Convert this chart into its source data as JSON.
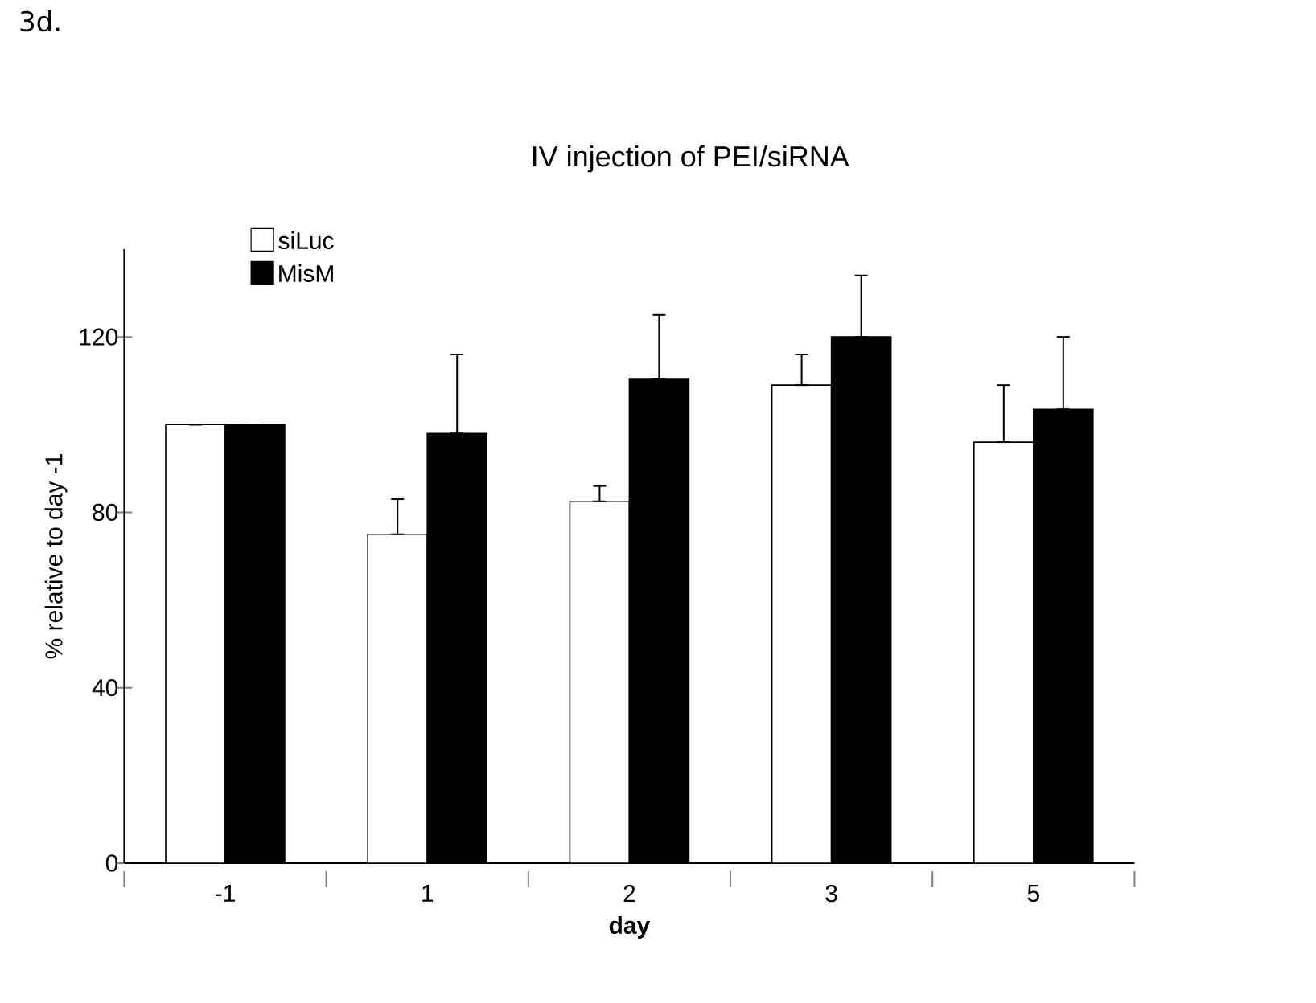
{
  "chart_data": {
    "type": "bar",
    "title": "IV injection of PEI/siRNA",
    "xlabel": "day",
    "ylabel": "% relative to day -1",
    "annotations": [
      "3d."
    ],
    "categories": [
      "-1",
      "1",
      "2",
      "3",
      "5"
    ],
    "series": [
      {
        "name": "siLuc",
        "color": "#ffffff",
        "values": [
          100,
          75,
          82.5,
          109,
          96
        ],
        "errors": [
          null,
          [
            75,
            83
          ],
          [
            82.5,
            86
          ],
          [
            109,
            116
          ],
          [
            96,
            109
          ]
        ]
      },
      {
        "name": "MisM",
        "color": "#000000",
        "values": [
          100,
          98,
          110.5,
          120,
          103.5
        ],
        "errors": [
          null,
          [
            98,
            116
          ],
          [
            110.5,
            125
          ],
          [
            120,
            134
          ],
          [
            103.5,
            120
          ]
        ]
      }
    ],
    "ylim": [
      0,
      140
    ],
    "yticks": [
      0,
      40,
      80,
      120
    ],
    "grid": false,
    "legend": "top left"
  }
}
